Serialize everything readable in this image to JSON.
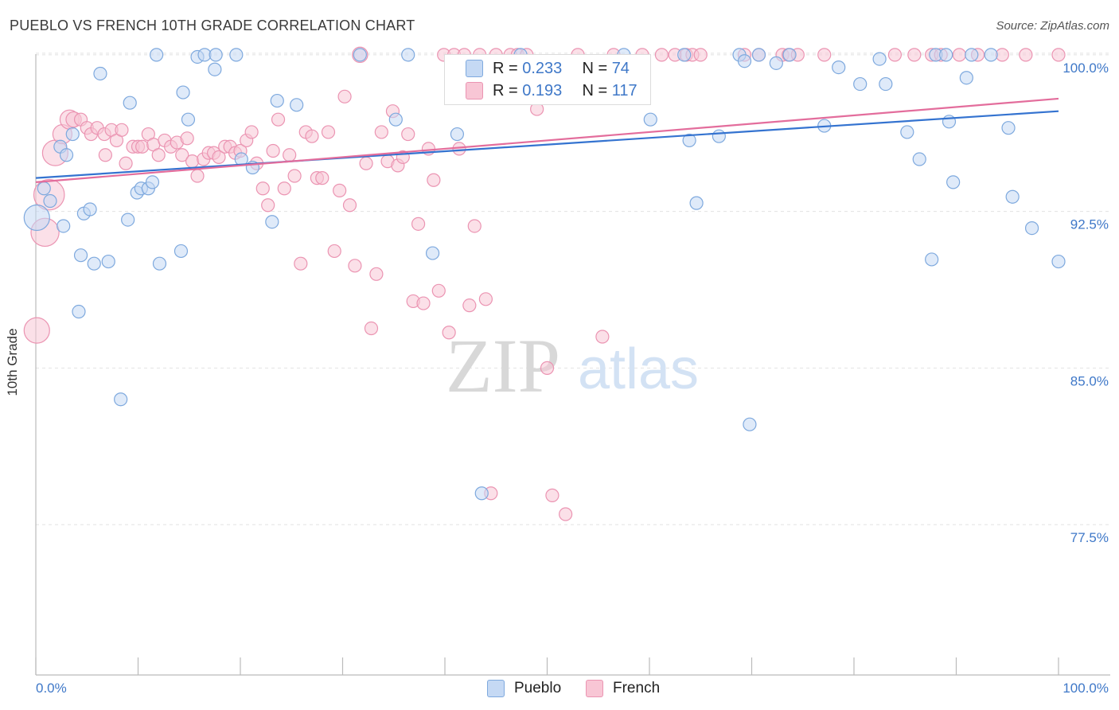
{
  "header": {
    "title": "PUEBLO VS FRENCH 10TH GRADE CORRELATION CHART",
    "source": "Source: ZipAtlas.com"
  },
  "colors": {
    "pueblo_fill": "#c5d9f4",
    "pueblo_stroke": "#7ea9de",
    "pueblo_line": "#3473d0",
    "french_fill": "#f8c6d5",
    "french_stroke": "#eb94b2",
    "french_line": "#e36d9c",
    "value_text": "#3f78c8",
    "grid": "#e2e2e2"
  },
  "legend_top": {
    "rows": [
      {
        "r_label": "R =",
        "r_value": "0.233",
        "n_label": "N =",
        "n_value": "74"
      },
      {
        "r_label": "R =",
        "r_value": "0.193",
        "n_label": "N =",
        "n_value": "117"
      }
    ]
  },
  "legend_bottom": {
    "items": [
      "Pueblo",
      "French"
    ]
  },
  "watermark": {
    "zip": "ZIP",
    "atlas": "atlas"
  },
  "chart_data": {
    "type": "scatter",
    "title": "PUEBLO VS FRENCH 10TH GRADE CORRELATION CHART",
    "xlabel": "",
    "ylabel": "10th Grade",
    "xlim": [
      0,
      100
    ],
    "ylim": [
      70.3,
      101.1
    ],
    "x_tick_labels": [
      "0.0%",
      "100.0%"
    ],
    "y_ticks": [
      77.5,
      85.0,
      92.5,
      100.0
    ],
    "y_tick_labels": [
      "77.5%",
      "85.0%",
      "92.5%",
      "100.0%"
    ],
    "grid": true,
    "legend_position": "top-center",
    "series": [
      {
        "name": "Pueblo",
        "r": 0.233,
        "n": 74,
        "trend": {
          "x": [
            0,
            100
          ],
          "y": [
            94.1,
            97.3
          ]
        },
        "points": [
          [
            0.1,
            92.2,
            2
          ],
          [
            0.8,
            93.6,
            1
          ],
          [
            1.4,
            93.0,
            1
          ],
          [
            2.4,
            95.6,
            1
          ],
          [
            3.0,
            95.2,
            1
          ],
          [
            2.7,
            91.8,
            1
          ],
          [
            3.6,
            96.2,
            1
          ],
          [
            4.2,
            87.7,
            1
          ],
          [
            4.4,
            90.4,
            1
          ],
          [
            4.7,
            92.4,
            1
          ],
          [
            5.3,
            92.6,
            1
          ],
          [
            5.7,
            90.0,
            1
          ],
          [
            6.3,
            99.1,
            1
          ],
          [
            7.1,
            90.1,
            1
          ],
          [
            8.3,
            83.5,
            1
          ],
          [
            9.0,
            92.1,
            1
          ],
          [
            9.2,
            97.7,
            1
          ],
          [
            9.9,
            93.4,
            1
          ],
          [
            10.3,
            93.6,
            1
          ],
          [
            11.0,
            93.6,
            1
          ],
          [
            11.4,
            93.9,
            1
          ],
          [
            11.8,
            100.0,
            1
          ],
          [
            12.1,
            90.0,
            1
          ],
          [
            14.2,
            90.6,
            1
          ],
          [
            14.4,
            98.2,
            1
          ],
          [
            14.9,
            96.9,
            1
          ],
          [
            15.8,
            99.9,
            1
          ],
          [
            16.5,
            100.0,
            1
          ],
          [
            17.5,
            99.3,
            1
          ],
          [
            17.6,
            100.0,
            1
          ],
          [
            19.6,
            100.0,
            1
          ],
          [
            20.1,
            95.0,
            1
          ],
          [
            21.2,
            94.6,
            1
          ],
          [
            23.1,
            92.0,
            1
          ],
          [
            23.6,
            97.8,
            1
          ],
          [
            25.5,
            97.6,
            1
          ],
          [
            31.7,
            100.0,
            1
          ],
          [
            35.2,
            96.9,
            1
          ],
          [
            36.4,
            100.0,
            1
          ],
          [
            38.8,
            90.5,
            1
          ],
          [
            41.2,
            96.2,
            1
          ],
          [
            43.6,
            79.0,
            1
          ],
          [
            47.4,
            100.0,
            1
          ],
          [
            57.5,
            100.0,
            1
          ],
          [
            60.1,
            96.9,
            1
          ],
          [
            63.4,
            100.0,
            1
          ],
          [
            63.9,
            95.9,
            1
          ],
          [
            64.6,
            92.9,
            1
          ],
          [
            66.8,
            96.1,
            1
          ],
          [
            68.8,
            100.0,
            1
          ],
          [
            69.3,
            99.7,
            1
          ],
          [
            69.8,
            82.3,
            1
          ],
          [
            70.7,
            100.0,
            1
          ],
          [
            72.4,
            99.6,
            1
          ],
          [
            73.7,
            100.0,
            1
          ],
          [
            77.1,
            96.6,
            1
          ],
          [
            78.5,
            99.4,
            1
          ],
          [
            80.6,
            98.6,
            1
          ],
          [
            82.5,
            99.8,
            1
          ],
          [
            83.1,
            98.6,
            1
          ],
          [
            85.2,
            96.3,
            1
          ],
          [
            86.4,
            95.0,
            1
          ],
          [
            87.6,
            90.2,
            1
          ],
          [
            88.0,
            100.0,
            1
          ],
          [
            89.0,
            100.0,
            1
          ],
          [
            89.3,
            96.8,
            1
          ],
          [
            89.7,
            93.9,
            1
          ],
          [
            91.0,
            98.9,
            1
          ],
          [
            91.5,
            100.0,
            1
          ],
          [
            93.4,
            100.0,
            1
          ],
          [
            95.1,
            96.5,
            1
          ],
          [
            95.5,
            93.2,
            1
          ],
          [
            97.4,
            91.7,
            1
          ],
          [
            100.0,
            90.1,
            1
          ]
        ]
      },
      {
        "name": "French",
        "r": 0.193,
        "n": 117,
        "trend": {
          "x": [
            0,
            100
          ],
          "y": [
            93.9,
            97.9
          ]
        },
        "points": [
          [
            0.1,
            86.8,
            2
          ],
          [
            0.9,
            91.5,
            2.2
          ],
          [
            1.3,
            93.3,
            2.4
          ],
          [
            1.9,
            95.3,
            2
          ],
          [
            2.6,
            96.2,
            1.5
          ],
          [
            3.3,
            96.9,
            1.5
          ],
          [
            3.7,
            96.9,
            1.2
          ],
          [
            4.4,
            96.9,
            1
          ],
          [
            5.0,
            96.5,
            1
          ],
          [
            5.4,
            96.2,
            1
          ],
          [
            6.0,
            96.5,
            1
          ],
          [
            6.7,
            96.2,
            1
          ],
          [
            6.8,
            95.2,
            1
          ],
          [
            7.4,
            96.4,
            1
          ],
          [
            7.9,
            95.9,
            1
          ],
          [
            8.4,
            96.4,
            1
          ],
          [
            8.8,
            94.8,
            1
          ],
          [
            9.5,
            95.6,
            1
          ],
          [
            10.0,
            95.6,
            1
          ],
          [
            10.4,
            95.6,
            1
          ],
          [
            11.0,
            96.2,
            1
          ],
          [
            11.5,
            95.7,
            1
          ],
          [
            12.0,
            95.2,
            1
          ],
          [
            12.6,
            95.9,
            1
          ],
          [
            13.2,
            95.6,
            1
          ],
          [
            13.8,
            95.8,
            1
          ],
          [
            14.3,
            95.2,
            1
          ],
          [
            14.8,
            96.0,
            1
          ],
          [
            15.3,
            94.9,
            1
          ],
          [
            15.8,
            94.2,
            1
          ],
          [
            16.4,
            95.0,
            1
          ],
          [
            16.9,
            95.3,
            1
          ],
          [
            17.4,
            95.3,
            1
          ],
          [
            17.9,
            95.1,
            1
          ],
          [
            18.5,
            95.6,
            1
          ],
          [
            19.0,
            95.6,
            1
          ],
          [
            19.5,
            95.3,
            1
          ],
          [
            20.0,
            95.4,
            1
          ],
          [
            20.6,
            95.9,
            1
          ],
          [
            21.1,
            96.3,
            1
          ],
          [
            21.6,
            94.8,
            1
          ],
          [
            22.2,
            93.6,
            1
          ],
          [
            22.7,
            92.8,
            1
          ],
          [
            23.2,
            95.4,
            1
          ],
          [
            23.7,
            96.9,
            1
          ],
          [
            24.3,
            93.6,
            1
          ],
          [
            24.8,
            95.2,
            1
          ],
          [
            25.3,
            94.2,
            1
          ],
          [
            25.9,
            90.0,
            1
          ],
          [
            26.4,
            96.3,
            1
          ],
          [
            27.0,
            96.1,
            1
          ],
          [
            27.5,
            94.1,
            1
          ],
          [
            28.0,
            94.1,
            1
          ],
          [
            28.6,
            96.3,
            1
          ],
          [
            29.2,
            90.6,
            1
          ],
          [
            29.7,
            93.5,
            1
          ],
          [
            30.2,
            98.0,
            1
          ],
          [
            30.7,
            92.8,
            1
          ],
          [
            31.2,
            89.9,
            1
          ],
          [
            31.7,
            100.0,
            1.2
          ],
          [
            32.3,
            94.8,
            1
          ],
          [
            32.8,
            86.9,
            1
          ],
          [
            33.3,
            89.5,
            1
          ],
          [
            33.8,
            96.3,
            1
          ],
          [
            34.4,
            94.9,
            1
          ],
          [
            34.9,
            97.3,
            1
          ],
          [
            35.4,
            94.7,
            1
          ],
          [
            35.9,
            95.1,
            1
          ],
          [
            36.4,
            96.2,
            1
          ],
          [
            36.9,
            88.2,
            1
          ],
          [
            37.4,
            91.9,
            1
          ],
          [
            37.9,
            88.1,
            1
          ],
          [
            38.4,
            95.5,
            1
          ],
          [
            38.9,
            94.0,
            1
          ],
          [
            39.4,
            88.7,
            1
          ],
          [
            39.9,
            100.0,
            1
          ],
          [
            40.4,
            86.7,
            1
          ],
          [
            40.9,
            100.0,
            1
          ],
          [
            41.4,
            95.5,
            1
          ],
          [
            41.9,
            100.0,
            1
          ],
          [
            42.4,
            88.0,
            1
          ],
          [
            42.9,
            91.8,
            1
          ],
          [
            43.4,
            100.0,
            1
          ],
          [
            44.0,
            88.3,
            1
          ],
          [
            44.5,
            79.0,
            1
          ],
          [
            45.0,
            100.0,
            1
          ],
          [
            46.4,
            100.0,
            1
          ],
          [
            47.1,
            100.0,
            1
          ],
          [
            48.0,
            100.0,
            1
          ],
          [
            49.0,
            97.4,
            1
          ],
          [
            50.0,
            85.0,
            1
          ],
          [
            50.5,
            78.9,
            1
          ],
          [
            51.8,
            78.0,
            1
          ],
          [
            53.0,
            100.0,
            1
          ],
          [
            55.4,
            86.5,
            1
          ],
          [
            56.5,
            100.0,
            1
          ],
          [
            59.3,
            100.0,
            1
          ],
          [
            61.2,
            100.0,
            1
          ],
          [
            62.5,
            100.0,
            1
          ],
          [
            63.6,
            100.0,
            1
          ],
          [
            64.2,
            100.0,
            1
          ],
          [
            65.0,
            100.0,
            1
          ],
          [
            69.3,
            100.0,
            1
          ],
          [
            70.7,
            100.0,
            1
          ],
          [
            73.0,
            100.0,
            1
          ],
          [
            73.6,
            100.0,
            1
          ],
          [
            74.5,
            100.0,
            1
          ],
          [
            77.1,
            100.0,
            1
          ],
          [
            84.0,
            100.0,
            1
          ],
          [
            85.9,
            100.0,
            1
          ],
          [
            87.6,
            100.0,
            1
          ],
          [
            88.5,
            100.0,
            1
          ],
          [
            90.3,
            100.0,
            1
          ],
          [
            92.1,
            100.0,
            1
          ],
          [
            94.5,
            100.0,
            1
          ],
          [
            96.8,
            100.0,
            1
          ],
          [
            100.0,
            100.0,
            1
          ]
        ]
      }
    ]
  }
}
